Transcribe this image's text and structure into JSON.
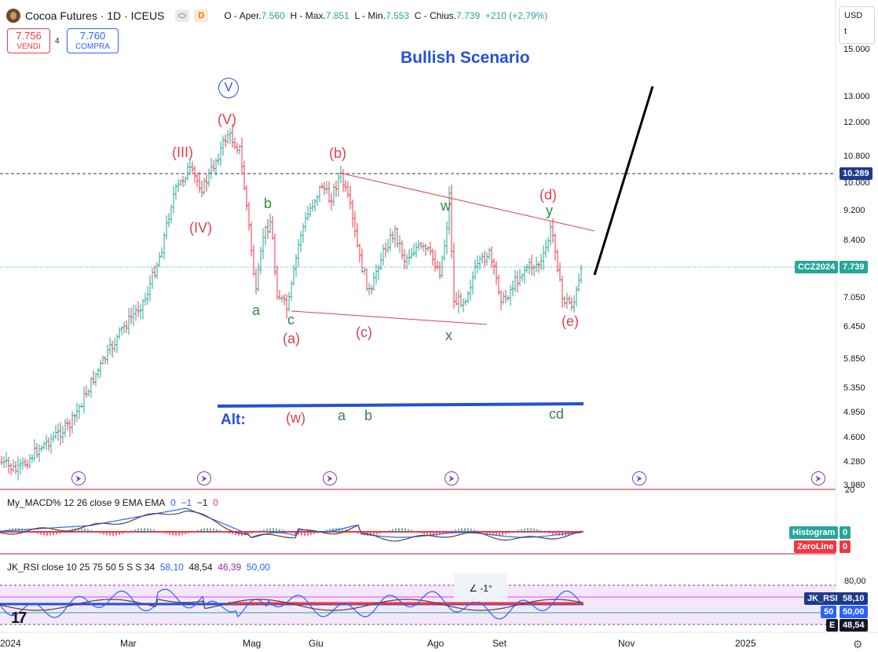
{
  "header": {
    "symbol_title": "Cocoa Futures · 1D · ICEUS",
    "delay_badge": "D",
    "ohlc": {
      "open_label": "O - Aper.",
      "open": "7.560",
      "high_label": "H - Max.",
      "high": "7.851",
      "low_label": "L - Min.",
      "low": "7.553",
      "close_label": "C - Chius.",
      "close": "7.739",
      "change": "+210 (+2,79%)"
    },
    "sell": {
      "price": "7.756",
      "label": "VENDI"
    },
    "buy": {
      "price": "7.760",
      "label": "COMPRA"
    },
    "spread": "4",
    "currency": "USD",
    "unit": "t"
  },
  "colors": {
    "up": "#26a69a",
    "down": "#f23645",
    "blue": "#2451d6",
    "annotation_red": "#e0404b",
    "annotation_green": "#2e8b3a"
  },
  "chart_data": [
    {
      "type": "ohlc",
      "symbol": "CCZ2024",
      "price_scale": [
        "15.000",
        "13.000",
        "12.000",
        "10.800",
        "10.000",
        "9.200",
        "8.400",
        "7.050",
        "6.450",
        "5.850",
        "5.350",
        "4.950",
        "4.600",
        "4.280",
        "3.980"
      ],
      "x_ticks": [
        "2024",
        "Mar",
        "Mag",
        "Giu",
        "Ago",
        "Set",
        "Nov",
        "2025"
      ],
      "horizontal_level": "10.289",
      "last_price": "7.739",
      "title": "Bullish Scenario",
      "wave_labels": {
        "circled_V": "V",
        "red": [
          "(V)",
          "(III)",
          "(IV)",
          "(b)",
          "(d)",
          "(a)",
          "(c)",
          "(e)"
        ],
        "green": [
          "b",
          "a",
          "c",
          "w",
          "y",
          "x"
        ],
        "alt": {
          "label": "Alt:",
          "red": "(w)",
          "green": [
            "a",
            "b",
            "cd"
          ]
        }
      }
    },
    {
      "type": "line",
      "name": "My_MACD% 12 26 close 9 EMA EMA",
      "params": [
        "0",
        "−1",
        "−1",
        "0"
      ],
      "tags": [
        {
          "name": "Histogram",
          "value": "0"
        },
        {
          "name": "ZeroLine",
          "value": "0"
        }
      ],
      "scale_top": "20"
    },
    {
      "type": "line",
      "name": "JK_RSI close 10 25 75 50 5 S S 34",
      "values_shown": [
        "58,10",
        "48,54",
        "46,39",
        "50,00"
      ],
      "tags": [
        {
          "name": "JK_RSI",
          "value": "58,10"
        },
        {
          "name": "50",
          "value": "50,00"
        },
        {
          "name": "E",
          "value": "48,54"
        }
      ],
      "scale_top": "80,00",
      "measure_label": "-1°"
    }
  ]
}
